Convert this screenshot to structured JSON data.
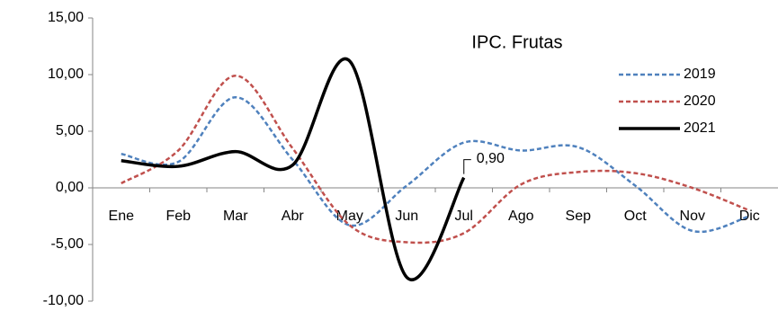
{
  "chart_data": {
    "type": "line",
    "title": "IPC. Frutas",
    "categories": [
      "Ene",
      "Feb",
      "Mar",
      "Abr",
      "May",
      "Jun",
      "Jul",
      "Ago",
      "Sep",
      "Oct",
      "Nov",
      "Dic"
    ],
    "series": [
      {
        "name": "2019",
        "color": "#4f81bd",
        "linestyle": "dashed",
        "values": [
          3.0,
          2.3,
          8.0,
          2.5,
          -3.3,
          0.2,
          4.0,
          3.3,
          3.6,
          0.2,
          -3.8,
          -2.5
        ]
      },
      {
        "name": "2020",
        "color": "#c0504d",
        "linestyle": "dashed",
        "values": [
          0.4,
          3.3,
          9.9,
          3.5,
          -3.3,
          -4.8,
          -4.0,
          0.3,
          1.4,
          1.3,
          0.0,
          -2.0
        ]
      },
      {
        "name": "2021",
        "color": "#000000",
        "linestyle": "solid",
        "values": [
          2.4,
          1.9,
          3.2,
          2.0,
          11.2,
          -7.9,
          0.9,
          null,
          null,
          null,
          null,
          null
        ],
        "value_labels": [
          null,
          null,
          null,
          null,
          null,
          null,
          "0,90",
          null,
          null,
          null,
          null,
          null
        ]
      }
    ],
    "ylim": [
      -10,
      15
    ],
    "yticks": [
      {
        "value": -10,
        "label": "-10,00"
      },
      {
        "value": -5,
        "label": "-5,00"
      },
      {
        "value": 0,
        "label": "0,00"
      },
      {
        "value": 5,
        "label": "5,00"
      },
      {
        "value": 10,
        "label": "10,00"
      },
      {
        "value": 15,
        "label": "15,00"
      }
    ],
    "grid": false,
    "smooth": true,
    "legend": "upper right"
  }
}
